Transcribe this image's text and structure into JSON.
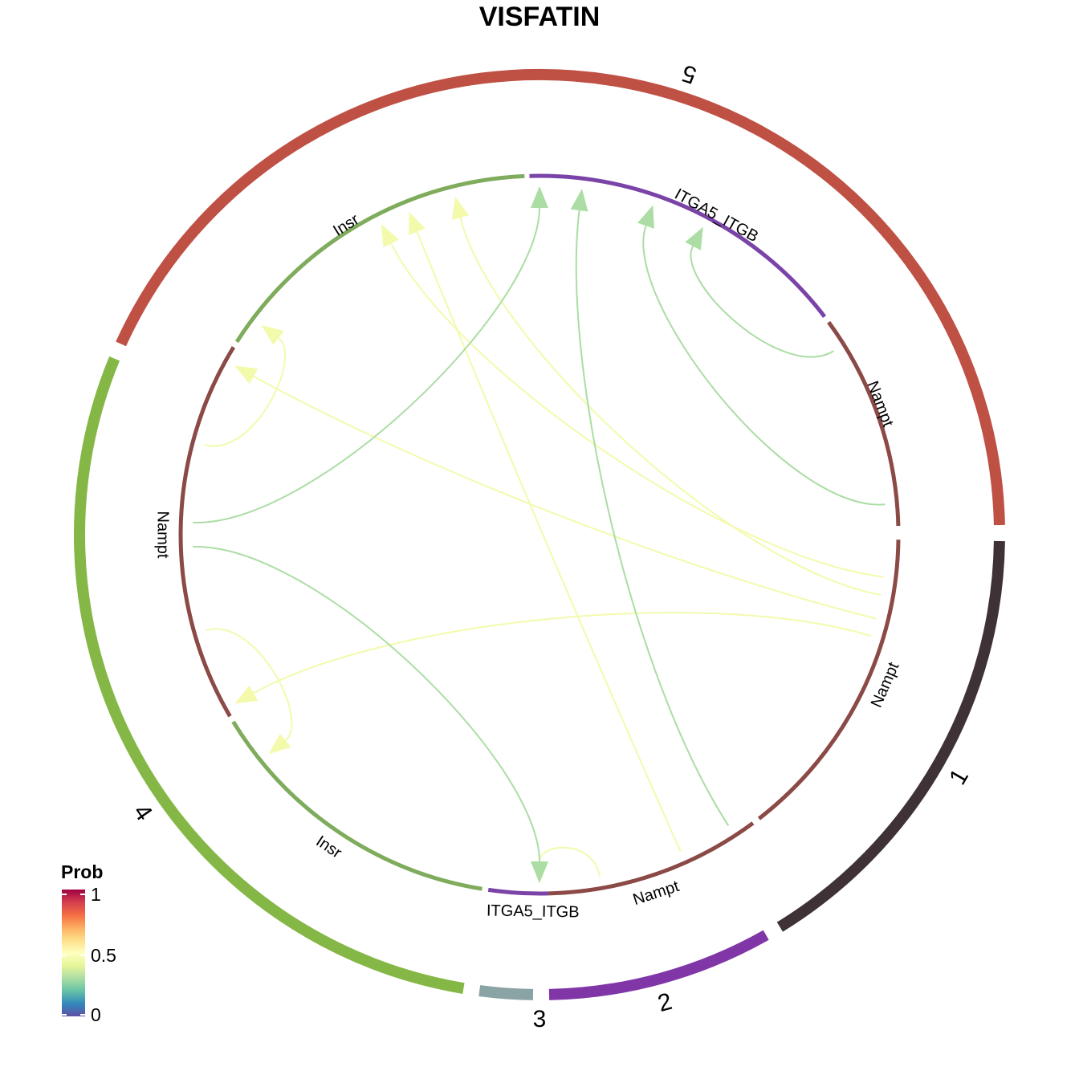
{
  "chart_data": {
    "type": "chord",
    "title": "VISFATIN",
    "groups": [
      {
        "name": "1",
        "color": "#3f3237"
      },
      {
        "name": "2",
        "color": "#8136a8"
      },
      {
        "name": "3",
        "color": "#8aa3a5"
      },
      {
        "name": "4",
        "color": "#84b745"
      },
      {
        "name": "5",
        "color": "#bf5044"
      }
    ],
    "sectors": [
      {
        "label": "Nampt",
        "group": "1",
        "color": "#8b4a46"
      },
      {
        "label": "Nampt",
        "group": "2",
        "color": "#8b4a46"
      },
      {
        "label": "ITGA5_ITGB",
        "group": "3",
        "color": "#7a43a8"
      },
      {
        "label": "Insr",
        "group": "4",
        "color": "#7fac5c"
      },
      {
        "label": "Nampt",
        "group": "4",
        "color": "#8b4a46"
      },
      {
        "label": "Insr",
        "group": "5",
        "color": "#7fac5c"
      },
      {
        "label": "ITGA5_ITGB",
        "group": "5",
        "color": "#7a43a8"
      },
      {
        "label": "Nampt",
        "group": "5",
        "color": "#8b4a46"
      }
    ],
    "links": [
      {
        "source": "Nampt (5)",
        "target": "ITGA5_ITGB (5)",
        "prob": 0.3
      },
      {
        "source": "Nampt (5)",
        "target": "Insr (5)",
        "prob": 0.45
      },
      {
        "source": "Nampt (1)",
        "target": "ITGA5_ITGB (5)",
        "prob": 0.3
      },
      {
        "source": "Nampt (1)",
        "target": "Insr (5)",
        "prob": 0.45
      },
      {
        "source": "Nampt (1)",
        "target": "Insr (4)",
        "prob": 0.45
      },
      {
        "source": "Nampt (1)",
        "target": "Insr (4)",
        "prob": 0.45
      },
      {
        "source": "Nampt (2)",
        "target": "ITGA5_ITGB (5)",
        "prob": 0.3
      },
      {
        "source": "Nampt (2)",
        "target": "Insr (5)",
        "prob": 0.45
      },
      {
        "source": "Nampt (2)",
        "target": "ITGA5_ITGB (3)",
        "prob": 0.45
      },
      {
        "source": "Nampt (4)",
        "target": "ITGA5_ITGB (5)",
        "prob": 0.3
      },
      {
        "source": "Nampt (4)",
        "target": "Insr (5)",
        "prob": 0.45
      },
      {
        "source": "Nampt (4)",
        "target": "ITGA5_ITGB (3)",
        "prob": 0.3
      },
      {
        "source": "Nampt (4)",
        "target": "Insr (4)",
        "prob": 0.45
      }
    ],
    "legend": {
      "title": "Prob",
      "ticks": [
        "1",
        "0.5",
        "0"
      ],
      "colors": [
        "#9e0142",
        "#d53e4f",
        "#f46d43",
        "#fdae61",
        "#fee08b",
        "#ffffbf",
        "#e6f598",
        "#abdda4",
        "#66c2a5",
        "#3288bd",
        "#5e4fa2"
      ],
      "placement": "bottom-left"
    }
  }
}
